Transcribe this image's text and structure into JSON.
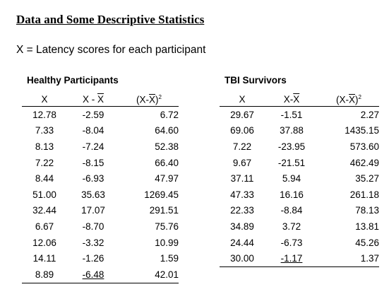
{
  "title": "Data and Some Descriptive Statistics",
  "subtitle": "X = Latency scores for each participant",
  "groups": [
    {
      "name": "Healthy Participants",
      "headers": {
        "x": "X",
        "dev_prefix": "X - ",
        "dev_mean": "X",
        "sq_prefix": "(X-",
        "sq_mean": "X",
        "sq_suffix": ")",
        "sq_power": "2"
      },
      "rows": [
        {
          "x": "12.78",
          "dev": "-2.59",
          "sq": "6.72"
        },
        {
          "x": "7.33",
          "dev": "-8.04",
          "sq": "64.60"
        },
        {
          "x": "8.13",
          "dev": "-7.24",
          "sq": "52.38"
        },
        {
          "x": "7.22",
          "dev": "-8.15",
          "sq": "66.40"
        },
        {
          "x": "8.44",
          "dev": "-6.93",
          "sq": "47.97"
        },
        {
          "x": "51.00",
          "dev": "35.63",
          "sq": "1269.45"
        },
        {
          "x": "32.44",
          "dev": "17.07",
          "sq": "291.51"
        },
        {
          "x": "6.67",
          "dev": "-8.70",
          "sq": "75.76"
        },
        {
          "x": "12.06",
          "dev": "-3.32",
          "sq": "10.99"
        },
        {
          "x": "14.11",
          "dev": "-1.26",
          "sq": "1.59"
        },
        {
          "x": "8.89",
          "dev": "-6.48",
          "sq": "42.01"
        }
      ]
    },
    {
      "name": "TBI Survivors",
      "headers": {
        "x": "X",
        "dev_prefix": "X-",
        "dev_mean": "X",
        "sq_prefix": "(X-",
        "sq_mean": "X",
        "sq_suffix": ")",
        "sq_power": "2"
      },
      "rows": [
        {
          "x": "29.67",
          "dev": "-1.51",
          "sq": "2.27"
        },
        {
          "x": "69.06",
          "dev": "37.88",
          "sq": "1435.15"
        },
        {
          "x": "7.22",
          "dev": "-23.95",
          "sq": "573.60"
        },
        {
          "x": "9.67",
          "dev": "-21.51",
          "sq": "462.49"
        },
        {
          "x": "37.11",
          "dev": "5.94",
          "sq": "35.27"
        },
        {
          "x": "47.33",
          "dev": "16.16",
          "sq": "261.18"
        },
        {
          "x": "22.33",
          "dev": "-8.84",
          "sq": "78.13"
        },
        {
          "x": "34.89",
          "dev": "3.72",
          "sq": "13.81"
        },
        {
          "x": "24.44",
          "dev": "-6.73",
          "sq": "45.26"
        },
        {
          "x": "30.00",
          "dev": "-1.17",
          "sq": "1.37"
        }
      ]
    }
  ]
}
